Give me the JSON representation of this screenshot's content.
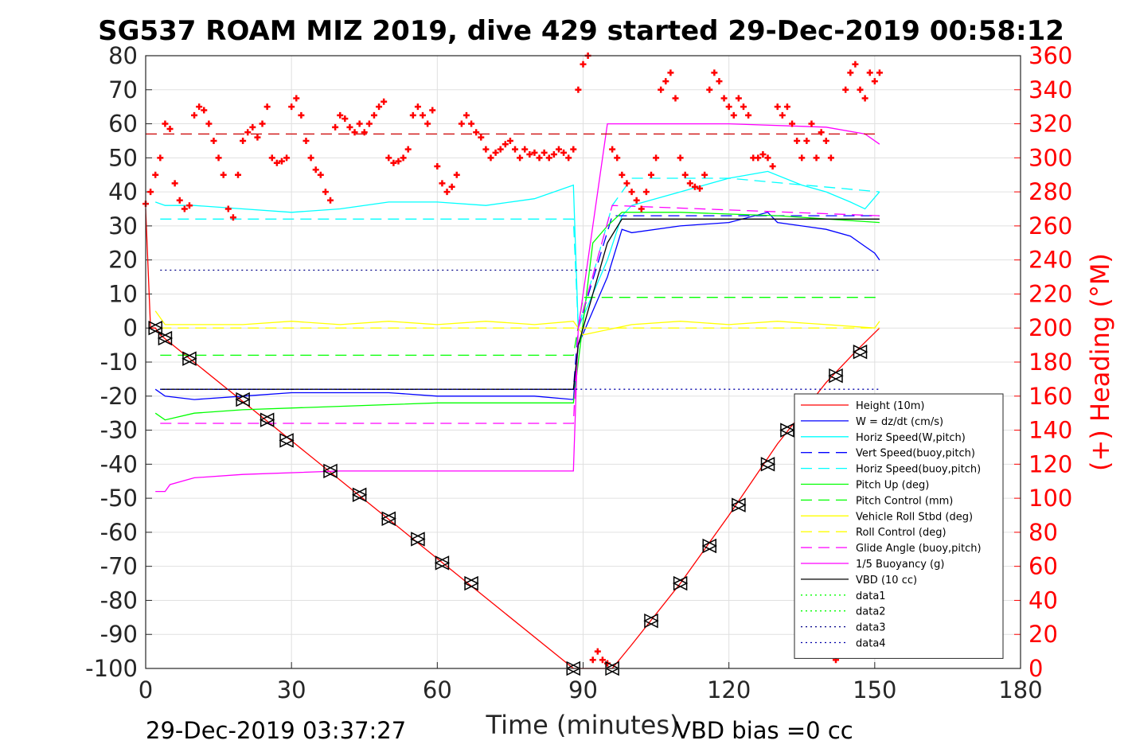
{
  "chart_data": {
    "type": "line",
    "title": "SG537 ROAM MIZ 2019, dive 429 started 29-Dec-2019 00:58:12",
    "xlabel": "Time (minutes)",
    "ylabel_right": "(+) Heading (°M)",
    "footer_left": "29-Dec-2019 03:37:27",
    "footer_right": "VBD bias =0 cc",
    "xlim": [
      0,
      180
    ],
    "ylim": [
      -100,
      80
    ],
    "ylim_right": [
      0,
      360
    ],
    "x_ticks": [
      "0",
      "30",
      "60",
      "90",
      "120",
      "150",
      "180"
    ],
    "y_ticks": [
      "-100",
      "-90",
      "-80",
      "-70",
      "-60",
      "-50",
      "-40",
      "-30",
      "-20",
      "-10",
      "0",
      "10",
      "20",
      "30",
      "40",
      "50",
      "60",
      "70",
      "80"
    ],
    "y_ticks_right": [
      "0",
      "20",
      "40",
      "60",
      "80",
      "100",
      "120",
      "140",
      "160",
      "180",
      "200",
      "220",
      "240",
      "260",
      "280",
      "300",
      "320",
      "340",
      "360"
    ],
    "grid": true,
    "legend_position": "bottom-right",
    "colors": {
      "height": "#ff0000",
      "w": "#0000ff",
      "horiz": "#00ffff",
      "pitch": "#00ff00",
      "roll": "#ffff00",
      "glide": "#ff00ff",
      "buoy": "#ff00ff",
      "vbd": "#000000",
      "data3": "#000088",
      "data4": "#0000aa"
    },
    "series": [
      {
        "name": "Height (10m)",
        "style": "solid",
        "color": "#ff0000",
        "x": [
          0,
          1,
          2,
          3,
          88,
          90,
          91,
          95,
          96,
          100,
          110,
          120,
          130,
          140,
          146,
          151
        ],
        "y": [
          35,
          0,
          0,
          -2,
          -100,
          -100,
          -100,
          -100,
          -100,
          -93,
          -75,
          -55,
          -34,
          -16,
          -7,
          0
        ]
      },
      {
        "name": "W = dz/dt (cm/s)",
        "style": "solid",
        "color": "#0000ff",
        "x": [
          2,
          4,
          10,
          20,
          30,
          40,
          50,
          60,
          70,
          80,
          88,
          89,
          92,
          95,
          98,
          100,
          110,
          120,
          128,
          130,
          140,
          145,
          148,
          150,
          151
        ],
        "y": [
          -18,
          -20,
          -21,
          -20,
          -19,
          -19,
          -19,
          -20,
          -20,
          -20,
          -21,
          -5,
          5,
          15,
          29,
          28,
          30,
          31,
          34,
          31,
          29,
          27,
          24,
          22,
          20
        ]
      },
      {
        "name": "Horiz Speed(W,pitch)",
        "style": "solid",
        "color": "#00ffff",
        "x": [
          2,
          4,
          10,
          20,
          30,
          40,
          50,
          60,
          70,
          80,
          88,
          89,
          92,
          95,
          98,
          100,
          110,
          120,
          128,
          135,
          140,
          145,
          148,
          151
        ],
        "y": [
          37,
          36,
          36,
          35,
          34,
          35,
          37,
          37,
          36,
          38,
          42,
          0,
          10,
          20,
          33,
          36,
          40,
          44,
          46,
          42,
          40,
          37,
          35,
          40
        ]
      },
      {
        "name": "Vert Speed(buoy,pitch)",
        "style": "dashed",
        "color": "#0000ff",
        "x": [
          3,
          88,
          89,
          96,
          151
        ],
        "y": [
          -18,
          -18,
          0,
          33,
          33
        ]
      },
      {
        "name": "Horiz Speed(buoy,pitch)",
        "style": "dashed",
        "color": "#00ffff",
        "x": [
          3,
          88,
          89,
          96,
          100,
          120,
          151
        ],
        "y": [
          32,
          32,
          0,
          36,
          44,
          44,
          40
        ]
      },
      {
        "name": "Pitch Up (deg)",
        "style": "solid",
        "color": "#00ff00",
        "x": [
          2,
          4,
          10,
          20,
          40,
          60,
          80,
          88,
          89,
          92,
          95,
          98,
          110,
          130,
          151
        ],
        "y": [
          -25,
          -27,
          -25,
          -24,
          -23,
          -22,
          -22,
          -22,
          -10,
          25,
          30,
          34,
          34,
          33,
          31
        ]
      },
      {
        "name": "Pitch Control (mm)",
        "style": "dashed",
        "color": "#00ff00",
        "x": [
          3,
          88,
          90,
          151
        ],
        "y": [
          -8,
          -8,
          9,
          9
        ]
      },
      {
        "name": "Vehicle Roll Stbd (deg)",
        "style": "solid",
        "color": "#ffff00",
        "x": [
          2,
          4,
          10,
          20,
          30,
          40,
          50,
          60,
          70,
          80,
          88,
          90,
          100,
          110,
          120,
          130,
          140,
          150,
          151
        ],
        "y": [
          5,
          1,
          1,
          1,
          2,
          1,
          2,
          1,
          2,
          1,
          2,
          -2,
          1,
          2,
          1,
          2,
          1,
          0,
          2
        ]
      },
      {
        "name": "Roll Control (deg)",
        "style": "dashed",
        "color": "#ffff00",
        "x": [
          3,
          88,
          90,
          151
        ],
        "y": [
          0,
          0,
          0,
          0
        ]
      },
      {
        "name": "Glide Angle (buoy,pitch)",
        "style": "dashed",
        "color": "#ff00ff",
        "x": [
          3,
          88,
          89,
          96,
          151
        ],
        "y": [
          -28,
          -28,
          0,
          36,
          33
        ]
      },
      {
        "name": "1/5 Buoyancy (g)",
        "style": "solid",
        "color": "#ff00ff",
        "x": [
          2,
          3,
          4,
          5,
          10,
          20,
          40,
          60,
          88,
          89,
          95,
          97,
          120,
          140,
          148,
          151
        ],
        "y": [
          -48,
          -48,
          -48,
          -46,
          -44,
          -43,
          -42,
          -42,
          -42,
          0,
          60,
          60,
          60,
          59,
          57,
          54
        ]
      },
      {
        "name": "VBD (10 cc)",
        "style": "solid",
        "color": "#000000",
        "x": [
          3,
          88,
          89,
          95,
          98,
          151
        ],
        "y": [
          -18,
          -18,
          -5,
          25,
          32,
          32
        ]
      },
      {
        "name": "data1",
        "style": "dotted",
        "color": "#00ff00",
        "x": [],
        "y": []
      },
      {
        "name": "data2",
        "style": "dotted",
        "color": "#00ff00",
        "x": [],
        "y": []
      },
      {
        "name": "data3",
        "style": "dotted",
        "color": "#000088",
        "x": [
          3,
          88,
          96,
          151
        ],
        "y": [
          17,
          17,
          17,
          17
        ]
      },
      {
        "name": "data4",
        "style": "dotted",
        "color": "#0000aa",
        "x": [
          3,
          88,
          96,
          151
        ],
        "y": [
          -18,
          -18,
          -18,
          -18
        ]
      }
    ],
    "heading_reference": {
      "color": "#cc0000",
      "style": "dashed",
      "heading": 314,
      "x_range": [
        0,
        151
      ]
    },
    "heading_series": {
      "axis": "right",
      "color": "#ff0000",
      "marker": "+",
      "x": [
        0,
        1,
        2,
        3,
        4,
        5,
        6,
        7,
        8,
        9,
        10,
        11,
        12,
        13,
        14,
        15,
        16,
        17,
        18,
        19,
        20,
        21,
        22,
        23,
        24,
        25,
        26,
        27,
        28,
        29,
        30,
        31,
        32,
        33,
        34,
        35,
        36,
        37,
        38,
        39,
        40,
        41,
        42,
        43,
        44,
        45,
        46,
        47,
        48,
        49,
        50,
        51,
        52,
        53,
        54,
        55,
        56,
        57,
        58,
        59,
        60,
        61,
        62,
        63,
        64,
        65,
        66,
        67,
        68,
        69,
        70,
        71,
        72,
        73,
        74,
        75,
        76,
        77,
        78,
        79,
        80,
        81,
        82,
        83,
        84,
        85,
        86,
        87,
        88,
        89,
        90,
        91,
        92,
        93,
        94,
        95,
        96,
        97,
        98,
        99,
        100,
        101,
        102,
        103,
        104,
        105,
        106,
        107,
        108,
        109,
        110,
        111,
        112,
        113,
        114,
        115,
        116,
        117,
        118,
        119,
        120,
        121,
        122,
        123,
        124,
        125,
        126,
        127,
        128,
        129,
        130,
        131,
        132,
        133,
        134,
        135,
        136,
        137,
        138,
        139,
        140,
        141,
        142,
        143,
        144,
        145,
        146,
        147,
        148,
        149,
        150,
        151
      ],
      "y": [
        273,
        280,
        290,
        300,
        320,
        317,
        285,
        275,
        270,
        272,
        325,
        330,
        328,
        320,
        310,
        300,
        290,
        270,
        265,
        290,
        310,
        315,
        318,
        312,
        320,
        330,
        300,
        297,
        298,
        300,
        330,
        335,
        325,
        310,
        300,
        293,
        290,
        280,
        275,
        318,
        325,
        323,
        318,
        315,
        320,
        315,
        320,
        325,
        330,
        333,
        300,
        297,
        298,
        300,
        305,
        325,
        330,
        325,
        320,
        328,
        295,
        285,
        280,
        283,
        290,
        320,
        325,
        320,
        315,
        312,
        305,
        300,
        303,
        305,
        308,
        310,
        305,
        300,
        305,
        302,
        303,
        300,
        303,
        300,
        302,
        305,
        303,
        300,
        305,
        340,
        355,
        360,
        5,
        10,
        5,
        3,
        305,
        300,
        290,
        285,
        280,
        275,
        270,
        280,
        290,
        300,
        340,
        345,
        350,
        335,
        300,
        290,
        285,
        283,
        282,
        290,
        340,
        350,
        345,
        335,
        330,
        325,
        335,
        330,
        325,
        300,
        300,
        302,
        300,
        295,
        330,
        325,
        330,
        320,
        310,
        300,
        310,
        320,
        300,
        315,
        310,
        300,
        5,
        10,
        340,
        350,
        355,
        340,
        335,
        350,
        345,
        350
      ]
    },
    "markers": {
      "style": "triangle-pairs",
      "color": "#000000",
      "x": [
        2,
        4,
        9,
        20,
        25,
        29,
        38,
        44,
        50,
        56,
        61,
        67,
        88,
        96,
        104,
        110,
        116,
        122,
        128,
        132,
        142,
        147
      ],
      "y": [
        0,
        -3,
        -9,
        -21,
        -27,
        -33,
        -42,
        -49,
        -56,
        -62,
        -69,
        -75,
        -100,
        -100,
        -86,
        -75,
        -64,
        -52,
        -40,
        -30,
        -14,
        -7
      ]
    }
  }
}
